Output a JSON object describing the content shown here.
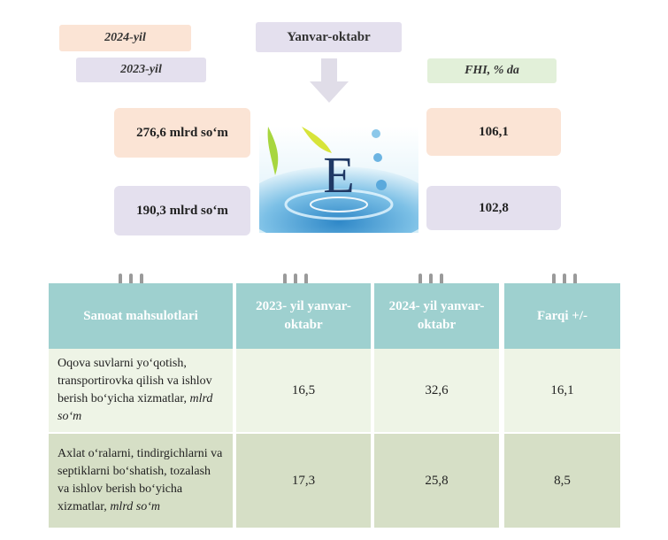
{
  "header": {
    "label_2024": "2024-yil",
    "label_2023": "2023-yil",
    "period": "Yanvar-oktabr",
    "fhi_label": "FHI, % da",
    "value_2024": "276,6 mlrd so‘m",
    "value_2023": "190,3 mlrd so‘m",
    "index_2024": "106,1",
    "index_2023": "102,8",
    "emblem_letter": "E",
    "colors": {
      "peach": "#fbe4d5",
      "lavender": "#e4e0ee",
      "mint": "#e2f0d9",
      "teal": "#9ed0cf"
    }
  },
  "table": {
    "headers": [
      "Sanoat mahsulotlari",
      "2023- yil yanvar-oktabr",
      "2024- yil yanvar-oktabr",
      "Farqi +/-"
    ],
    "rows": [
      {
        "name": "Oqova suvlarni  yo‘qotish, transportirovka qilish va ishlov berish bo‘yicha xizmatlar,",
        "unit": "mlrd so‘m",
        "v2023": "16,5",
        "v2024": "32,6",
        "diff": "16,1"
      },
      {
        "name": "Axlat o‘ralarni, tindirgichlarni va septiklarni bo‘shatish, tozalash va ishlov berish bo‘yicha xizmatlar,",
        "unit": "mlrd so‘m",
        "v2023": "17,3",
        "v2024": "25,8",
        "diff": "8,5"
      }
    ]
  }
}
